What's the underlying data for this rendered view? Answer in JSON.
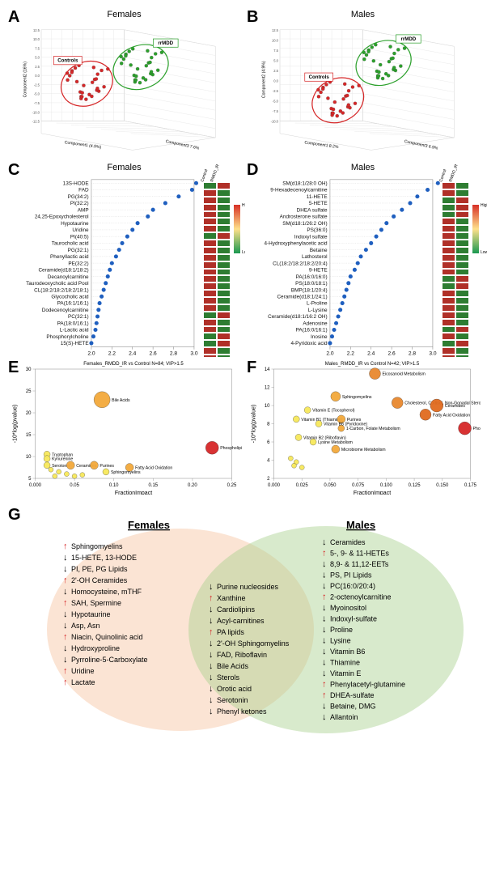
{
  "panelA": {
    "label": "A",
    "title": "Females",
    "axis_x": "Component1 (4.9%)",
    "axis_y": "Component2 (16%)",
    "axis_z": "Component3 7.6%",
    "groups": {
      "controls": {
        "label": "Controls",
        "color": "#d62728",
        "box_border": "#d62728"
      },
      "rrmdd": {
        "label": "rrMDD",
        "color": "#2ca02c",
        "box_border": "#2ca02c"
      }
    },
    "grid_color": "#bbbbbb",
    "background": "#ffffff",
    "y_ticks": [
      -12.5,
      -10.0,
      -7.5,
      -5.0,
      -2.5,
      0.0,
      2.5,
      5.0,
      7.5,
      10.0,
      12.5
    ]
  },
  "panelB": {
    "label": "B",
    "title": "Males",
    "axis_x": "Component1 8.2%",
    "axis_y": "Component2 (4.9%)",
    "axis_z": "Component3 6.9%",
    "groups": {
      "controls": {
        "label": "Controls",
        "color": "#d62728"
      },
      "rrmdd": {
        "label": "rrMDD",
        "color": "#2ca02c"
      }
    },
    "y_ticks": [
      -10.0,
      -7.5,
      -5.0,
      -2.5,
      0.0,
      2.5,
      5.0,
      7.5,
      10.0,
      12.5
    ]
  },
  "panelC": {
    "label": "C",
    "title": "Females",
    "x_label": "VIP scores",
    "x_ticks": [
      2.0,
      2.2,
      2.4,
      2.6,
      2.8,
      3.0
    ],
    "dot_color": "#1f5fbf",
    "heat_headers": [
      "Control",
      "RMDD_IR"
    ],
    "colorbar": {
      "high": "High",
      "low": "Low",
      "colors": [
        "#d73027",
        "#fee08b",
        "#1a9850"
      ]
    },
    "items": [
      {
        "name": "13S-HODE",
        "vip": 3.02,
        "heat": [
          "g",
          "r"
        ]
      },
      {
        "name": "FAD",
        "vip": 2.98,
        "heat": [
          "r",
          "g"
        ]
      },
      {
        "name": "PG(34:2)",
        "vip": 2.85,
        "heat": [
          "r",
          "g"
        ]
      },
      {
        "name": "PI(32:2)",
        "vip": 2.72,
        "heat": [
          "r",
          "g"
        ]
      },
      {
        "name": "AMP",
        "vip": 2.6,
        "heat": [
          "r",
          "g"
        ]
      },
      {
        "name": "24,25-Epoxycholesterol",
        "vip": 2.55,
        "heat": [
          "r",
          "g"
        ]
      },
      {
        "name": "Hypotaurine",
        "vip": 2.45,
        "heat": [
          "r",
          "g"
        ]
      },
      {
        "name": "Uridine",
        "vip": 2.4,
        "heat": [
          "g",
          "r"
        ]
      },
      {
        "name": "PI(40:5)",
        "vip": 2.35,
        "heat": [
          "r",
          "g"
        ]
      },
      {
        "name": "Taurocholic acid",
        "vip": 2.3,
        "heat": [
          "r",
          "g"
        ]
      },
      {
        "name": "PG(32:1)",
        "vip": 2.27,
        "heat": [
          "r",
          "g"
        ]
      },
      {
        "name": "Phenyllactic acid",
        "vip": 2.24,
        "heat": [
          "r",
          "g"
        ]
      },
      {
        "name": "PE(32:2)",
        "vip": 2.2,
        "heat": [
          "r",
          "g"
        ]
      },
      {
        "name": "Ceramide(d18:1/18:2)",
        "vip": 2.18,
        "heat": [
          "r",
          "g"
        ]
      },
      {
        "name": "Decanoylcarnitine",
        "vip": 2.16,
        "heat": [
          "r",
          "g"
        ]
      },
      {
        "name": "Taurodeoxycholic acid Pool",
        "vip": 2.14,
        "heat": [
          "r",
          "g"
        ]
      },
      {
        "name": "CL(18:2/18:2/18:2/18:1)",
        "vip": 2.12,
        "heat": [
          "r",
          "g"
        ]
      },
      {
        "name": "Glycocholic acid",
        "vip": 2.1,
        "heat": [
          "r",
          "g"
        ]
      },
      {
        "name": "PA(16:1/16:1)",
        "vip": 2.08,
        "heat": [
          "g",
          "r"
        ]
      },
      {
        "name": "Dodecenoylcarnitine",
        "vip": 2.07,
        "heat": [
          "r",
          "g"
        ]
      },
      {
        "name": "PC(32:1)",
        "vip": 2.06,
        "heat": [
          "r",
          "g"
        ]
      },
      {
        "name": "PA(18:0/16:1)",
        "vip": 2.05,
        "heat": [
          "g",
          "r"
        ]
      },
      {
        "name": "L-Lactic acid",
        "vip": 2.04,
        "heat": [
          "g",
          "r"
        ]
      },
      {
        "name": "Phosphorylcholine",
        "vip": 2.02,
        "heat": [
          "r",
          "g"
        ]
      },
      {
        "name": "15(S)-HETE",
        "vip": 2.0,
        "heat": [
          "r",
          "g"
        ]
      }
    ]
  },
  "panelD": {
    "label": "D",
    "title": "Males",
    "x_label": "VIP scores",
    "x_ticks": [
      2.0,
      2.2,
      2.4,
      2.6,
      2.8,
      3.0
    ],
    "dot_color": "#1f5fbf",
    "heat_headers": [
      "Control",
      "RMDD_IR"
    ],
    "items": [
      {
        "name": "SM(d18:1/28:0 OH)",
        "vip": 3.05,
        "heat": [
          "r",
          "g"
        ]
      },
      {
        "name": "9-Hexadecenoylcarnitine",
        "vip": 2.95,
        "heat": [
          "r",
          "g"
        ]
      },
      {
        "name": "11-HETE",
        "vip": 2.85,
        "heat": [
          "g",
          "r"
        ]
      },
      {
        "name": "5-HETE",
        "vip": 2.78,
        "heat": [
          "g",
          "r"
        ]
      },
      {
        "name": "DHEA sulfate",
        "vip": 2.7,
        "heat": [
          "g",
          "r"
        ]
      },
      {
        "name": "Androsterone sulfate",
        "vip": 2.62,
        "heat": [
          "r",
          "g"
        ]
      },
      {
        "name": "SM(d18:1/26:2 OH)",
        "vip": 2.55,
        "heat": [
          "r",
          "g"
        ]
      },
      {
        "name": "PS(36:0)",
        "vip": 2.5,
        "heat": [
          "r",
          "g"
        ]
      },
      {
        "name": "Indoxyl sulfate",
        "vip": 2.45,
        "heat": [
          "r",
          "g"
        ]
      },
      {
        "name": "4-Hydroxyphenylacetic acid",
        "vip": 2.4,
        "heat": [
          "r",
          "g"
        ]
      },
      {
        "name": "Betaine",
        "vip": 2.35,
        "heat": [
          "r",
          "g"
        ]
      },
      {
        "name": "Lathosterol",
        "vip": 2.3,
        "heat": [
          "r",
          "g"
        ]
      },
      {
        "name": "CL(18:2/18:2/18:2/20:4)",
        "vip": 2.27,
        "heat": [
          "r",
          "g"
        ]
      },
      {
        "name": "9-HETE",
        "vip": 2.24,
        "heat": [
          "g",
          "r"
        ]
      },
      {
        "name": "PA(16:0/16:0)",
        "vip": 2.2,
        "heat": [
          "g",
          "r"
        ]
      },
      {
        "name": "PS(18:0/18:1)",
        "vip": 2.18,
        "heat": [
          "r",
          "g"
        ]
      },
      {
        "name": "BMP(18:1/20:4)",
        "vip": 2.16,
        "heat": [
          "r",
          "g"
        ]
      },
      {
        "name": "Ceramide(d18:1/24:1)",
        "vip": 2.14,
        "heat": [
          "r",
          "g"
        ]
      },
      {
        "name": "L-Proline",
        "vip": 2.12,
        "heat": [
          "r",
          "g"
        ]
      },
      {
        "name": "L-Lysine",
        "vip": 2.1,
        "heat": [
          "r",
          "g"
        ]
      },
      {
        "name": "Ceramide(d18:1/16:2 OH)",
        "vip": 2.08,
        "heat": [
          "g",
          "r"
        ]
      },
      {
        "name": "Adenosine",
        "vip": 2.06,
        "heat": [
          "r",
          "g"
        ]
      },
      {
        "name": "PA(16:0/16:1)",
        "vip": 2.04,
        "heat": [
          "g",
          "r"
        ]
      },
      {
        "name": "Inosine",
        "vip": 2.02,
        "heat": [
          "r",
          "g"
        ]
      },
      {
        "name": "4-Pyridoxic acid",
        "vip": 2.0,
        "heat": [
          "r",
          "g"
        ]
      }
    ]
  },
  "panelE": {
    "label": "E",
    "title": "Females_RMDD_IR vs Control N=84; VIP>1.5",
    "x_label": "FractionImpact",
    "y_label": "-10*log(pvalue)",
    "x_ticks": [
      0.0,
      0.05,
      0.1,
      0.15,
      0.2,
      0.25
    ],
    "y_ticks": [
      5,
      10,
      15,
      20,
      25,
      30
    ],
    "bubbles": [
      {
        "label": "Bile Acids",
        "x": 0.085,
        "y": 23,
        "r": 10,
        "color": "#f2a93b"
      },
      {
        "label": "Phospholipids",
        "x": 0.225,
        "y": 12,
        "r": 8,
        "color": "#d62728"
      },
      {
        "label": "Tryptophan",
        "x": 0.015,
        "y": 10.5,
        "r": 4,
        "color": "#f7e85b"
      },
      {
        "label": "Kynurenine",
        "x": 0.015,
        "y": 9.5,
        "r": 4,
        "color": "#f7e85b"
      },
      {
        "label": "Serotonin",
        "x": 0.015,
        "y": 8,
        "r": 4,
        "color": "#f7e85b"
      },
      {
        "label": "Ceramides",
        "x": 0.045,
        "y": 8,
        "r": 5,
        "color": "#f2a93b"
      },
      {
        "label": "Purines",
        "x": 0.075,
        "y": 8,
        "r": 5,
        "color": "#f2a93b"
      },
      {
        "label": "Fatty Acid Oxidation",
        "x": 0.12,
        "y": 7.5,
        "r": 5,
        "color": "#f2a93b"
      },
      {
        "label": "Sphingomyelins",
        "x": 0.09,
        "y": 6.5,
        "r": 4,
        "color": "#f7e85b"
      },
      {
        "label": "",
        "x": 0.02,
        "y": 7,
        "r": 3,
        "color": "#f7e85b"
      },
      {
        "label": "",
        "x": 0.03,
        "y": 6.5,
        "r": 3,
        "color": "#f7e85b"
      },
      {
        "label": "",
        "x": 0.04,
        "y": 6,
        "r": 3,
        "color": "#f7e85b"
      },
      {
        "label": "",
        "x": 0.025,
        "y": 5.5,
        "r": 3,
        "color": "#f7e85b"
      },
      {
        "label": "",
        "x": 0.05,
        "y": 5.5,
        "r": 3,
        "color": "#f7e85b"
      },
      {
        "label": "",
        "x": 0.06,
        "y": 5.8,
        "r": 3,
        "color": "#f7e85b"
      }
    ]
  },
  "panelF": {
    "label": "F",
    "title": "Males_RMDD_IR vs Control N=42; VIP>1.5",
    "x_label": "FractionImpact",
    "y_label": "-10*log(pvalue)",
    "x_ticks": [
      0.0,
      0.025,
      0.05,
      0.075,
      0.1,
      0.125,
      0.15,
      0.175
    ],
    "y_ticks": [
      2,
      4,
      6,
      8,
      10,
      12,
      14
    ],
    "bubbles": [
      {
        "label": "Eicosanoid Metabolism",
        "x": 0.09,
        "y": 13.5,
        "r": 7,
        "color": "#e8882e"
      },
      {
        "label": "Sphingomyelins",
        "x": 0.055,
        "y": 11,
        "r": 6,
        "color": "#f2a93b"
      },
      {
        "label": "Cholesterol, Cortisol, Non-Gonadal Steroids",
        "x": 0.11,
        "y": 10.3,
        "r": 7,
        "color": "#e8882e"
      },
      {
        "label": "Ceramides",
        "x": 0.145,
        "y": 10,
        "r": 8,
        "color": "#e06a1f"
      },
      {
        "label": "Vitamin E (Tocopherol)",
        "x": 0.03,
        "y": 9.5,
        "r": 4,
        "color": "#f7e85b"
      },
      {
        "label": "Fatty Acid Oxidation",
        "x": 0.135,
        "y": 9,
        "r": 7,
        "color": "#e06a1f"
      },
      {
        "label": "Vitamin B1 (Thiamine)",
        "x": 0.02,
        "y": 8.5,
        "r": 4,
        "color": "#f7e85b"
      },
      {
        "label": "Purines",
        "x": 0.06,
        "y": 8.5,
        "r": 5,
        "color": "#f2a93b"
      },
      {
        "label": "Vitamin B6 (Pyridoxine)",
        "x": 0.04,
        "y": 8,
        "r": 4,
        "color": "#f7e85b"
      },
      {
        "label": "1-Carbon, Folate Metabolism",
        "x": 0.06,
        "y": 7.5,
        "r": 4,
        "color": "#f2a93b"
      },
      {
        "label": "Phospholipids",
        "x": 0.17,
        "y": 7.5,
        "r": 8,
        "color": "#d62728"
      },
      {
        "label": "Vitamin B2 (Riboflavin)",
        "x": 0.022,
        "y": 6.5,
        "r": 4,
        "color": "#f7e85b"
      },
      {
        "label": "Lysine Metabolism",
        "x": 0.035,
        "y": 6,
        "r": 4,
        "color": "#f7e85b"
      },
      {
        "label": "Microbiome Metabolism",
        "x": 0.055,
        "y": 5.2,
        "r": 5,
        "color": "#f2a93b"
      },
      {
        "label": "",
        "x": 0.015,
        "y": 4.2,
        "r": 3,
        "color": "#f7e85b"
      },
      {
        "label": "",
        "x": 0.02,
        "y": 3.8,
        "r": 3,
        "color": "#f7e85b"
      },
      {
        "label": "",
        "x": 0.018,
        "y": 3.4,
        "r": 3,
        "color": "#f7e85b"
      },
      {
        "label": "",
        "x": 0.025,
        "y": 3.2,
        "r": 3,
        "color": "#f7e85b"
      }
    ]
  },
  "panelG": {
    "label": "G",
    "females_title": "Females",
    "males_title": "Males",
    "female_color": "#f4b183",
    "male_color": "#a9d08e",
    "arrow_up_color": "#d62728",
    "arrow_down_color": "#000000",
    "females": [
      {
        "dir": "up",
        "text": "Sphingomyelins"
      },
      {
        "dir": "down",
        "text": "15-HETE, 13-HODE"
      },
      {
        "dir": "down",
        "text": "PI, PE, PG Lipids"
      },
      {
        "dir": "up",
        "text": "2'-OH Ceramides"
      },
      {
        "dir": "down",
        "text": "Homocysteine, mTHF"
      },
      {
        "dir": "up",
        "text": "SAH, Spermine"
      },
      {
        "dir": "down",
        "text": "Hypotaurine"
      },
      {
        "dir": "down",
        "text": "Asp, Asn"
      },
      {
        "dir": "up",
        "text": "Niacin, Quinolinic acid"
      },
      {
        "dir": "down",
        "text": "Hydroxyproline"
      },
      {
        "dir": "down",
        "text": "Pyrroline-5-Carboxylate"
      },
      {
        "dir": "up",
        "text": "Uridine"
      },
      {
        "dir": "up",
        "text": "Lactate"
      }
    ],
    "shared": [
      {
        "dir": "down",
        "text": "Purine nucleosides"
      },
      {
        "dir": "up",
        "text": "Xanthine"
      },
      {
        "dir": "down",
        "text": "Cardiolipins"
      },
      {
        "dir": "down",
        "text": "Acyl-carnitines"
      },
      {
        "dir": "up",
        "text": "PA lipids"
      },
      {
        "dir": "down",
        "text": "2'-OH Sphingomyelins"
      },
      {
        "dir": "down",
        "text": "FAD, Riboflavin"
      },
      {
        "dir": "down",
        "text": "Bile Acids"
      },
      {
        "dir": "down",
        "text": "Sterols"
      },
      {
        "dir": "down",
        "text": "Orotic acid"
      },
      {
        "dir": "down",
        "text": "Serotonin"
      },
      {
        "dir": "down",
        "text": "Phenyl ketones"
      }
    ],
    "males": [
      {
        "dir": "down",
        "text": "Ceramides"
      },
      {
        "dir": "up",
        "text": "5-, 9- & 11-HETEs"
      },
      {
        "dir": "down",
        "text": "8,9- & 11,12-EETs"
      },
      {
        "dir": "down",
        "text": "PS, PI Lipids"
      },
      {
        "dir": "down",
        "text": "PC(16:0/20:4)"
      },
      {
        "dir": "up",
        "text": "2-octenoylcarnitine"
      },
      {
        "dir": "down",
        "text": "Myoinositol"
      },
      {
        "dir": "down",
        "text": "Indoxyl-sulfate"
      },
      {
        "dir": "down",
        "text": "Proline"
      },
      {
        "dir": "down",
        "text": "Lysine"
      },
      {
        "dir": "down",
        "text": "Vitamin B6"
      },
      {
        "dir": "down",
        "text": "Thiamine"
      },
      {
        "dir": "down",
        "text": "Vitamin E"
      },
      {
        "dir": "up",
        "text": "Phenylacetyl-glutamine"
      },
      {
        "dir": "up",
        "text": "DHEA-sulfate"
      },
      {
        "dir": "down",
        "text": "Betaine, DMG"
      },
      {
        "dir": "down",
        "text": "Allantoin"
      }
    ]
  }
}
